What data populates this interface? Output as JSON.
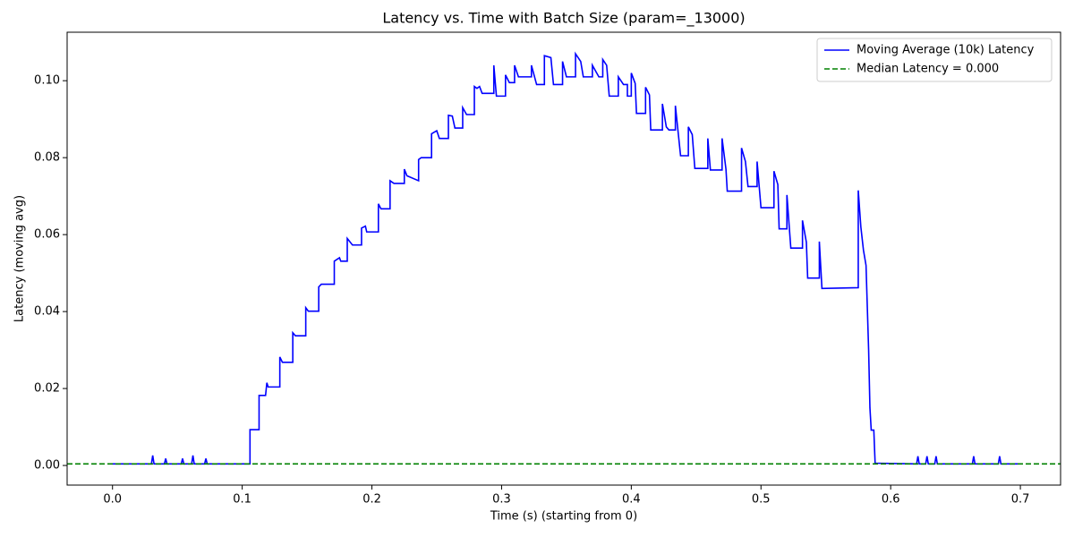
{
  "chart_data": {
    "type": "line",
    "title": "Latency vs. Time with Batch Size (param=_13000)",
    "x_label": "Time (s) (starting from 0)",
    "y_label": "Latency (moving avg)",
    "xlim": [
      -0.035,
      0.731
    ],
    "ylim": [
      -0.0051,
      0.1126
    ],
    "xticks": [
      {
        "value": 0,
        "label": "0.0"
      },
      0.1,
      0.2,
      0.3,
      0.4,
      0.5,
      0.6,
      0.7
    ],
    "yticks": [
      {
        "value": 0,
        "label": "0.00"
      },
      {
        "value": 0.02,
        "label": "0.02"
      },
      {
        "value": 0.04,
        "label": "0.04"
      },
      {
        "value": 0.06,
        "label": "0.06"
      },
      {
        "value": 0.08,
        "label": "0.08"
      },
      {
        "value": 0.1,
        "label": "0.10"
      }
    ],
    "legend": "upper right",
    "series": [
      {
        "name": "Moving Average (10k) Latency",
        "color": "#0000ff",
        "x": [
          0,
          0.03,
          0.031,
          0.032,
          0.04,
          0.041,
          0.042,
          0.053,
          0.054,
          0.055,
          0.061,
          0.062,
          0.063,
          0.071,
          0.072,
          0.073,
          0.106,
          0.106,
          0.113,
          0.113,
          0.118,
          0.119,
          0.12,
          0.129,
          0.129,
          0.131,
          0.139,
          0.139,
          0.141,
          0.149,
          0.149,
          0.151,
          0.159,
          0.159,
          0.161,
          0.171,
          0.171,
          0.175,
          0.176,
          0.181,
          0.181,
          0.185,
          0.192,
          0.192,
          0.195,
          0.196,
          0.205,
          0.205,
          0.207,
          0.214,
          0.214,
          0.217,
          0.225,
          0.225,
          0.227,
          0.236,
          0.236,
          0.238,
          0.246,
          0.246,
          0.25,
          0.252,
          0.259,
          0.259,
          0.262,
          0.264,
          0.27,
          0.27,
          0.273,
          0.279,
          0.279,
          0.281,
          0.283,
          0.285,
          0.294,
          0.294,
          0.296,
          0.303,
          0.303,
          0.306,
          0.31,
          0.31,
          0.313,
          0.323,
          0.323,
          0.327,
          0.333,
          0.333,
          0.338,
          0.34,
          0.347,
          0.347,
          0.35,
          0.357,
          0.357,
          0.361,
          0.363,
          0.37,
          0.37,
          0.375,
          0.378,
          0.378,
          0.381,
          0.383,
          0.39,
          0.39,
          0.394,
          0.397,
          0.397,
          0.4,
          0.4,
          0.403,
          0.404,
          0.411,
          0.411,
          0.414,
          0.415,
          0.424,
          0.424,
          0.427,
          0.429,
          0.434,
          0.434,
          0.436,
          0.438,
          0.444,
          0.444,
          0.447,
          0.449,
          0.459,
          0.459,
          0.461,
          0.47,
          0.47,
          0.473,
          0.474,
          0.485,
          0.485,
          0.488,
          0.49,
          0.497,
          0.497,
          0.5,
          0.51,
          0.51,
          0.513,
          0.514,
          0.52,
          0.52,
          0.523,
          0.532,
          0.532,
          0.535,
          0.536,
          0.545,
          0.545,
          0.547,
          0.575,
          0.575,
          0.577,
          0.579,
          0.581,
          0.582,
          0.583,
          0.584,
          0.585,
          0.587,
          0.588,
          0.62,
          0.621,
          0.622,
          0.627,
          0.628,
          0.629,
          0.634,
          0.635,
          0.636,
          0.663,
          0.664,
          0.665,
          0.683,
          0.684,
          0.685,
          0.698
        ],
        "values": [
          0.0004,
          0.0004,
          0.0026,
          0.0004,
          0.0004,
          0.0018,
          0.0004,
          0.0004,
          0.0018,
          0.0004,
          0.0004,
          0.0026,
          0.0004,
          0.0004,
          0.0018,
          0.0004,
          0.0004,
          0.0093,
          0.0093,
          0.0182,
          0.0182,
          0.0215,
          0.0204,
          0.0204,
          0.0282,
          0.0268,
          0.0268,
          0.0345,
          0.0337,
          0.0337,
          0.041,
          0.0401,
          0.0401,
          0.0464,
          0.0471,
          0.0471,
          0.0531,
          0.054,
          0.0531,
          0.0531,
          0.059,
          0.0573,
          0.0573,
          0.0617,
          0.0622,
          0.0607,
          0.0607,
          0.068,
          0.0667,
          0.0667,
          0.074,
          0.0733,
          0.0733,
          0.077,
          0.0753,
          0.074,
          0.0795,
          0.08,
          0.08,
          0.0862,
          0.087,
          0.085,
          0.085,
          0.091,
          0.0908,
          0.0877,
          0.0877,
          0.093,
          0.0912,
          0.0912,
          0.0985,
          0.098,
          0.0985,
          0.0967,
          0.0967,
          0.104,
          0.096,
          0.096,
          0.1015,
          0.0995,
          0.0995,
          0.104,
          0.101,
          0.101,
          0.104,
          0.099,
          0.099,
          0.1065,
          0.106,
          0.099,
          0.099,
          0.105,
          0.101,
          0.101,
          0.107,
          0.105,
          0.101,
          0.101,
          0.104,
          0.101,
          0.101,
          0.1055,
          0.104,
          0.096,
          0.096,
          0.101,
          0.099,
          0.099,
          0.096,
          0.096,
          0.102,
          0.0993,
          0.0915,
          0.0915,
          0.0983,
          0.0963,
          0.0872,
          0.0872,
          0.094,
          0.088,
          0.0872,
          0.0872,
          0.0935,
          0.087,
          0.0805,
          0.0805,
          0.088,
          0.086,
          0.0772,
          0.0772,
          0.085,
          0.0768,
          0.0768,
          0.085,
          0.077,
          0.0713,
          0.0713,
          0.0825,
          0.079,
          0.0725,
          0.0725,
          0.079,
          0.067,
          0.067,
          0.0765,
          0.073,
          0.0615,
          0.0615,
          0.0703,
          0.0565,
          0.0565,
          0.0637,
          0.058,
          0.0487,
          0.0487,
          0.0582,
          0.046,
          0.0462,
          0.0715,
          0.062,
          0.056,
          0.052,
          0.041,
          0.03,
          0.015,
          0.0092,
          0.0092,
          0.0006,
          0.0004,
          0.0024,
          0.0004,
          0.0004,
          0.0024,
          0.0004,
          0.0004,
          0.0024,
          0.0004,
          0.0004,
          0.0024,
          0.0004,
          0.0004,
          0.0024,
          0.0004,
          0.0004
        ]
      },
      {
        "name": "Median Latency = 0.000",
        "color": "#008000",
        "y": 0.0004,
        "dashed": true
      }
    ]
  }
}
